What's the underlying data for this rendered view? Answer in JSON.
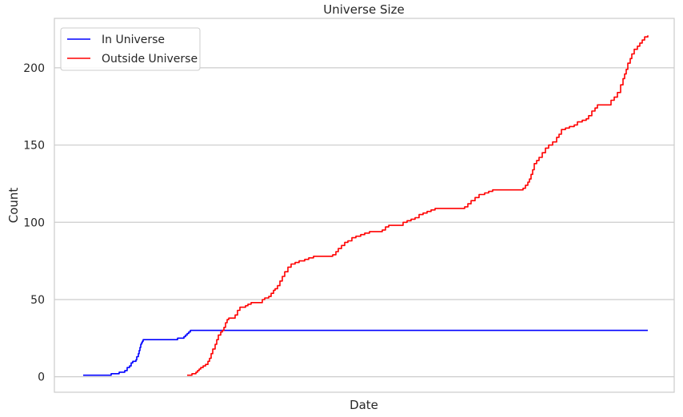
{
  "chart_data": {
    "type": "line",
    "title": "Universe Size",
    "xlabel": "Date",
    "ylabel": "Count",
    "ylim": [
      -10,
      232
    ],
    "yticks": [
      0,
      50,
      100,
      150,
      200
    ],
    "xticks_shown": false,
    "grid": "horizontal",
    "legend_position": "top-left",
    "series": [
      {
        "name": "In Universe",
        "color": "#0000ff",
        "points": [
          [
            0,
            1
          ],
          [
            35,
            1
          ],
          [
            35,
            2
          ],
          [
            45,
            2
          ],
          [
            45,
            3
          ],
          [
            52,
            3
          ],
          [
            52,
            4
          ],
          [
            54,
            4
          ],
          [
            55,
            6
          ],
          [
            58,
            7
          ],
          [
            60,
            9
          ],
          [
            62,
            10
          ],
          [
            64,
            10
          ],
          [
            66,
            11
          ],
          [
            67,
            13
          ],
          [
            69,
            15
          ],
          [
            70,
            17
          ],
          [
            71,
            19
          ],
          [
            72,
            21
          ],
          [
            73,
            22
          ],
          [
            74,
            23
          ],
          [
            75,
            24
          ],
          [
            117,
            24
          ],
          [
            118,
            25
          ],
          [
            125,
            25
          ],
          [
            126,
            26
          ],
          [
            128,
            27
          ],
          [
            130,
            28
          ],
          [
            132,
            29
          ],
          [
            134,
            30
          ],
          [
            706,
            30
          ]
        ]
      },
      {
        "name": "Outside Universe",
        "color": "#ff0000",
        "points": [
          [
            130,
            1
          ],
          [
            136,
            2
          ],
          [
            139,
            2
          ],
          [
            141,
            3
          ],
          [
            143,
            4
          ],
          [
            145,
            5
          ],
          [
            147,
            6
          ],
          [
            150,
            7
          ],
          [
            153,
            8
          ],
          [
            156,
            10
          ],
          [
            158,
            12
          ],
          [
            160,
            15
          ],
          [
            162,
            18
          ],
          [
            165,
            21
          ],
          [
            167,
            24
          ],
          [
            169,
            27
          ],
          [
            172,
            29
          ],
          [
            174,
            30
          ],
          [
            176,
            32
          ],
          [
            178,
            35
          ],
          [
            180,
            37
          ],
          [
            182,
            38
          ],
          [
            186,
            38
          ],
          [
            190,
            40
          ],
          [
            193,
            43
          ],
          [
            196,
            45
          ],
          [
            200,
            45
          ],
          [
            203,
            46
          ],
          [
            206,
            47
          ],
          [
            210,
            48
          ],
          [
            221,
            48
          ],
          [
            224,
            50
          ],
          [
            227,
            51
          ],
          [
            232,
            52
          ],
          [
            235,
            54
          ],
          [
            238,
            56
          ],
          [
            240,
            57
          ],
          [
            243,
            59
          ],
          [
            246,
            62
          ],
          [
            249,
            65
          ],
          [
            252,
            68
          ],
          [
            256,
            71
          ],
          [
            260,
            73
          ],
          [
            265,
            74
          ],
          [
            270,
            75
          ],
          [
            277,
            76
          ],
          [
            282,
            77
          ],
          [
            288,
            78
          ],
          [
            305,
            78
          ],
          [
            312,
            79
          ],
          [
            316,
            81
          ],
          [
            319,
            83
          ],
          [
            323,
            85
          ],
          [
            327,
            87
          ],
          [
            331,
            88
          ],
          [
            336,
            90
          ],
          [
            341,
            91
          ],
          [
            347,
            92
          ],
          [
            352,
            93
          ],
          [
            358,
            94
          ],
          [
            370,
            94
          ],
          [
            374,
            95
          ],
          [
            378,
            97
          ],
          [
            382,
            98
          ],
          [
            396,
            98
          ],
          [
            400,
            100
          ],
          [
            405,
            101
          ],
          [
            410,
            102
          ],
          [
            415,
            103
          ],
          [
            420,
            105
          ],
          [
            425,
            106
          ],
          [
            430,
            107
          ],
          [
            435,
            108
          ],
          [
            440,
            109
          ],
          [
            473,
            109
          ],
          [
            477,
            110
          ],
          [
            481,
            112
          ],
          [
            485,
            114
          ],
          [
            490,
            116
          ],
          [
            495,
            118
          ],
          [
            502,
            119
          ],
          [
            507,
            120
          ],
          [
            512,
            121
          ],
          [
            547,
            121
          ],
          [
            550,
            122
          ],
          [
            553,
            124
          ],
          [
            556,
            126
          ],
          [
            558,
            128
          ],
          [
            560,
            131
          ],
          [
            562,
            134
          ],
          [
            564,
            138
          ],
          [
            567,
            140
          ],
          [
            570,
            142
          ],
          [
            574,
            145
          ],
          [
            578,
            148
          ],
          [
            582,
            150
          ],
          [
            587,
            152
          ],
          [
            592,
            155
          ],
          [
            595,
            157
          ],
          [
            598,
            160
          ],
          [
            603,
            161
          ],
          [
            608,
            162
          ],
          [
            614,
            163
          ],
          [
            618,
            165
          ],
          [
            624,
            166
          ],
          [
            629,
            167
          ],
          [
            632,
            169
          ],
          [
            636,
            172
          ],
          [
            640,
            174
          ],
          [
            643,
            176
          ],
          [
            655,
            176
          ],
          [
            660,
            179
          ],
          [
            664,
            181
          ],
          [
            668,
            184
          ],
          [
            672,
            189
          ],
          [
            675,
            193
          ],
          [
            677,
            196
          ],
          [
            679,
            199
          ],
          [
            681,
            203
          ],
          [
            684,
            206
          ],
          [
            686,
            209
          ],
          [
            689,
            212
          ],
          [
            693,
            214
          ],
          [
            696,
            216
          ],
          [
            699,
            218
          ],
          [
            702,
            220
          ],
          [
            706,
            221
          ]
        ]
      }
    ]
  }
}
